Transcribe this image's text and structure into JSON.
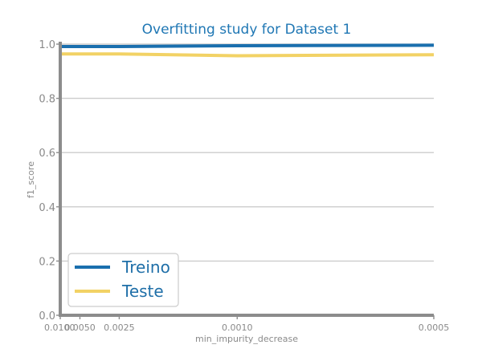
{
  "chart_data": {
    "type": "line",
    "title": "Overfitting study for Dataset 1",
    "xlabel": "min_impurity_decrease",
    "ylabel": "f1_score",
    "x_scale": "reciprocal",
    "x_reversed": true,
    "xlim": [
      0.01,
      0.0005
    ],
    "ylim": [
      0.0,
      1.0
    ],
    "x_ticks": [
      "0.0100",
      "0.0050",
      "0.0025",
      "0.0010",
      "0.0005"
    ],
    "y_ticks": [
      "0.0",
      "0.2",
      "0.4",
      "0.6",
      "0.8",
      "1.0"
    ],
    "grid": "horizontal",
    "legend_position": "lower-left",
    "x": [
      0.01,
      0.0075,
      0.005,
      0.0025,
      0.001,
      0.0005
    ],
    "series": [
      {
        "name": "Treino",
        "color": "#1a6fae",
        "values": [
          0.991,
          0.991,
          0.991,
          0.991,
          0.994,
          0.996
        ]
      },
      {
        "name": "Teste",
        "color": "#f2d265",
        "values": [
          0.964,
          0.964,
          0.964,
          0.964,
          0.957,
          0.961
        ]
      }
    ],
    "axis_color": "#8c8c8c",
    "grid_color": "#cccccc"
  }
}
